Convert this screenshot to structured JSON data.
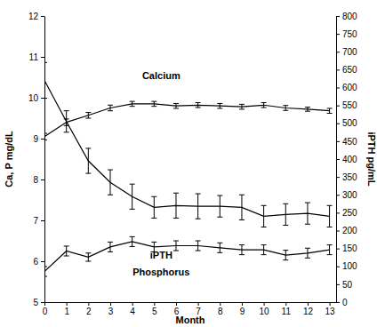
{
  "chart_data": {
    "type": "line",
    "x_label": "Month",
    "y_label": "Ca, P mg/dL",
    "y2_label": "iPTH pg/mL",
    "x": [
      0,
      1,
      2,
      3,
      4,
      5,
      6,
      7,
      8,
      9,
      10,
      11,
      12,
      13
    ],
    "xlim": [
      0,
      13.3
    ],
    "xticks": [
      0,
      1,
      2,
      3,
      4,
      5,
      6,
      7,
      8,
      9,
      10,
      11,
      12,
      13
    ],
    "ylim": [
      5,
      12
    ],
    "yticks": [
      5,
      6,
      7,
      8,
      9,
      10,
      11,
      12
    ],
    "y2lim": [
      0,
      800
    ],
    "y2ticks": [
      0,
      50,
      100,
      150,
      200,
      250,
      300,
      350,
      400,
      450,
      500,
      550,
      600,
      650,
      700,
      750,
      800
    ],
    "series": [
      {
        "name": "Calcium",
        "color": "#000000",
        "marker": "none",
        "line_style": "solid",
        "values": [
          9.05,
          9.4,
          9.57,
          9.75,
          9.85,
          9.85,
          9.8,
          9.82,
          9.8,
          9.78,
          9.82,
          9.75,
          9.72,
          9.68
        ],
        "errors": [
          0.08,
          0.08,
          0.07,
          0.07,
          0.06,
          0.06,
          0.06,
          0.06,
          0.06,
          0.06,
          0.06,
          0.06,
          0.05,
          0.06
        ]
      },
      {
        "name": "iPTH",
        "color": "#000000",
        "marker": "none",
        "line_style": "solid",
        "axis": "y2",
        "values": [
          620,
          505,
          395,
          335,
          295,
          265,
          270,
          268,
          268,
          265,
          240,
          245,
          248,
          240
        ],
        "errors": [
          50,
          30,
          35,
          35,
          35,
          30,
          35,
          35,
          30,
          35,
          30,
          30,
          30,
          30
        ]
      },
      {
        "name": "Phosphorus",
        "color": "#000000",
        "marker": "none",
        "line_style": "solid",
        "values": [
          5.75,
          6.25,
          6.1,
          6.35,
          6.48,
          6.35,
          6.38,
          6.38,
          6.33,
          6.28,
          6.28,
          6.15,
          6.2,
          6.28
        ],
        "errors": [
          0.12,
          0.12,
          0.1,
          0.12,
          0.12,
          0.12,
          0.12,
          0.12,
          0.12,
          0.12,
          0.12,
          0.12,
          0.12,
          0.12
        ]
      }
    ]
  }
}
